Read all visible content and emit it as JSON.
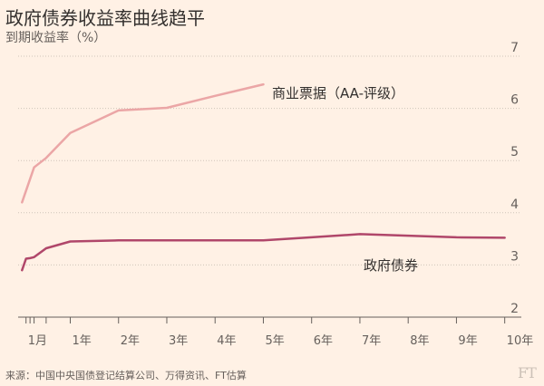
{
  "title": "政府债券收益率曲线趋平",
  "subtitle": "到期收益率（%）",
  "source": "来源：中国中央国债登记结算公司、万得资讯、FT估算",
  "logo_text": "FT",
  "chart_data": {
    "type": "line",
    "x_categories": [
      "1月",
      "1年",
      "2年",
      "3年",
      "4年",
      "5年",
      "6年",
      "7年",
      "8年",
      "9年",
      "10年"
    ],
    "x_tick_positions": [
      0.0833,
      1,
      2,
      3,
      4,
      5,
      6,
      7,
      8,
      9,
      10
    ],
    "minor_ticks": [
      0.1667,
      0.25,
      0.5
    ],
    "xlim": [
      -0.08,
      10.1
    ],
    "ylim": [
      2,
      7
    ],
    "y_ticks": [
      2,
      3,
      4,
      5,
      6,
      7
    ],
    "grid": "horizontal dotted",
    "series": [
      {
        "name": "商业票据（AA-评级）",
        "color": "#eba6a6",
        "x": [
          0.0,
          0.25,
          0.5,
          1,
          2,
          3,
          4,
          5
        ],
        "y": [
          4.2,
          4.87,
          5.05,
          5.53,
          5.96,
          6.01,
          6.24,
          6.46
        ]
      },
      {
        "name": "政府债券",
        "color": "#b0476a",
        "x": [
          0.0,
          0.0833,
          0.1667,
          0.25,
          0.5,
          1,
          2,
          3,
          4,
          5,
          6,
          7,
          8,
          9,
          10
        ],
        "y": [
          2.9,
          3.12,
          3.13,
          3.15,
          3.32,
          3.45,
          3.47,
          3.47,
          3.47,
          3.47,
          3.53,
          3.59,
          3.56,
          3.53,
          3.52
        ]
      }
    ]
  }
}
